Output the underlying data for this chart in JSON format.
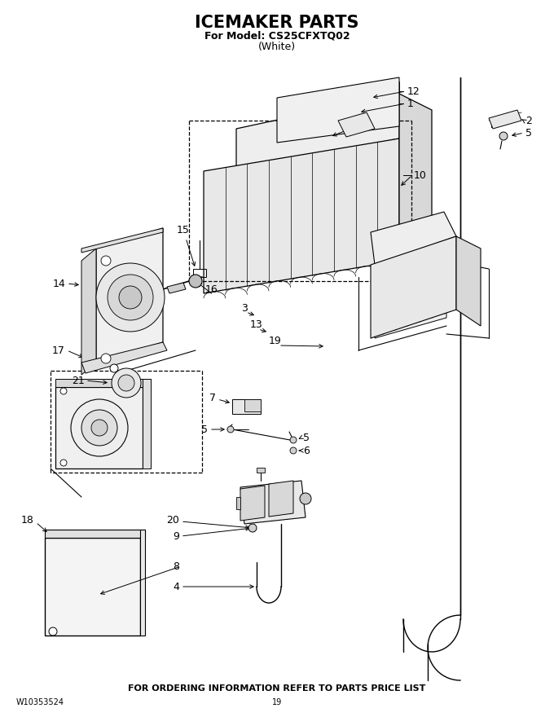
{
  "title": "ICEMAKER PARTS",
  "subtitle1": "For Model: CS25CFXTQ02",
  "subtitle2": "(White)",
  "footer_text": "FOR ORDERING INFORMATION REFER TO PARTS PRICE LIST",
  "doc_number": "W10353524",
  "page_number": "19",
  "bg_color": "#ffffff",
  "text_color": "#000000",
  "title_fontsize": 15,
  "subtitle_fontsize": 9,
  "footer_fontsize": 8,
  "label_fontsize": 9
}
